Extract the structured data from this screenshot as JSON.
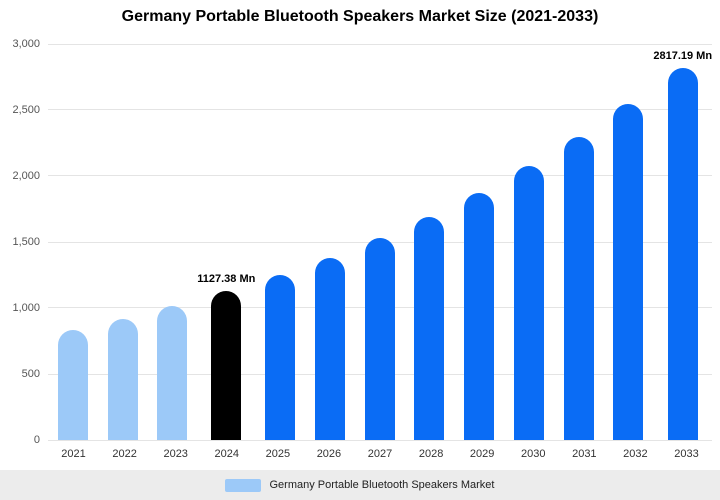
{
  "title": "Germany Portable Bluetooth Speakers Market Size (2021-2033)",
  "legend": {
    "label": "Germany Portable Bluetooth Speakers Market",
    "swatch_color": "#9cc9f8"
  },
  "colors": {
    "historical_bar": "#9cc9f8",
    "base_year_bar": "#000000",
    "forecast_bar": "#0a6cf5",
    "gridline": "#e4e4e4",
    "legend_background": "#ececec"
  },
  "chart_data": {
    "type": "bar",
    "title": "Germany Portable Bluetooth Speakers Market Size (2021-2033)",
    "unit": "Mn",
    "categories": [
      "2021",
      "2022",
      "2023",
      "2024",
      "2025",
      "2026",
      "2027",
      "2028",
      "2029",
      "2030",
      "2031",
      "2032",
      "2033"
    ],
    "values": [
      830,
      920,
      1015,
      1127.38,
      1248,
      1381,
      1529,
      1693,
      1874,
      2074,
      2296,
      2542,
      2817.19
    ],
    "bar_colors": [
      "#9cc9f8",
      "#9cc9f8",
      "#9cc9f8",
      "#000000",
      "#0a6cf5",
      "#0a6cf5",
      "#0a6cf5",
      "#0a6cf5",
      "#0a6cf5",
      "#0a6cf5",
      "#0a6cf5",
      "#0a6cf5",
      "#0a6cf5"
    ],
    "data_labels": {
      "2024": "1127.38 Mn",
      "2033": "2817.19 Mn"
    },
    "xlabel": "",
    "ylabel": "",
    "ylim": [
      0,
      3000
    ],
    "yticks": [
      "3,000",
      "2,500",
      "2,000",
      "1,500",
      "1,000",
      "500",
      "0"
    ],
    "grid": "horizontal",
    "legend_position": "bottom",
    "legend_entries": [
      "Germany Portable Bluetooth Speakers Market"
    ]
  }
}
